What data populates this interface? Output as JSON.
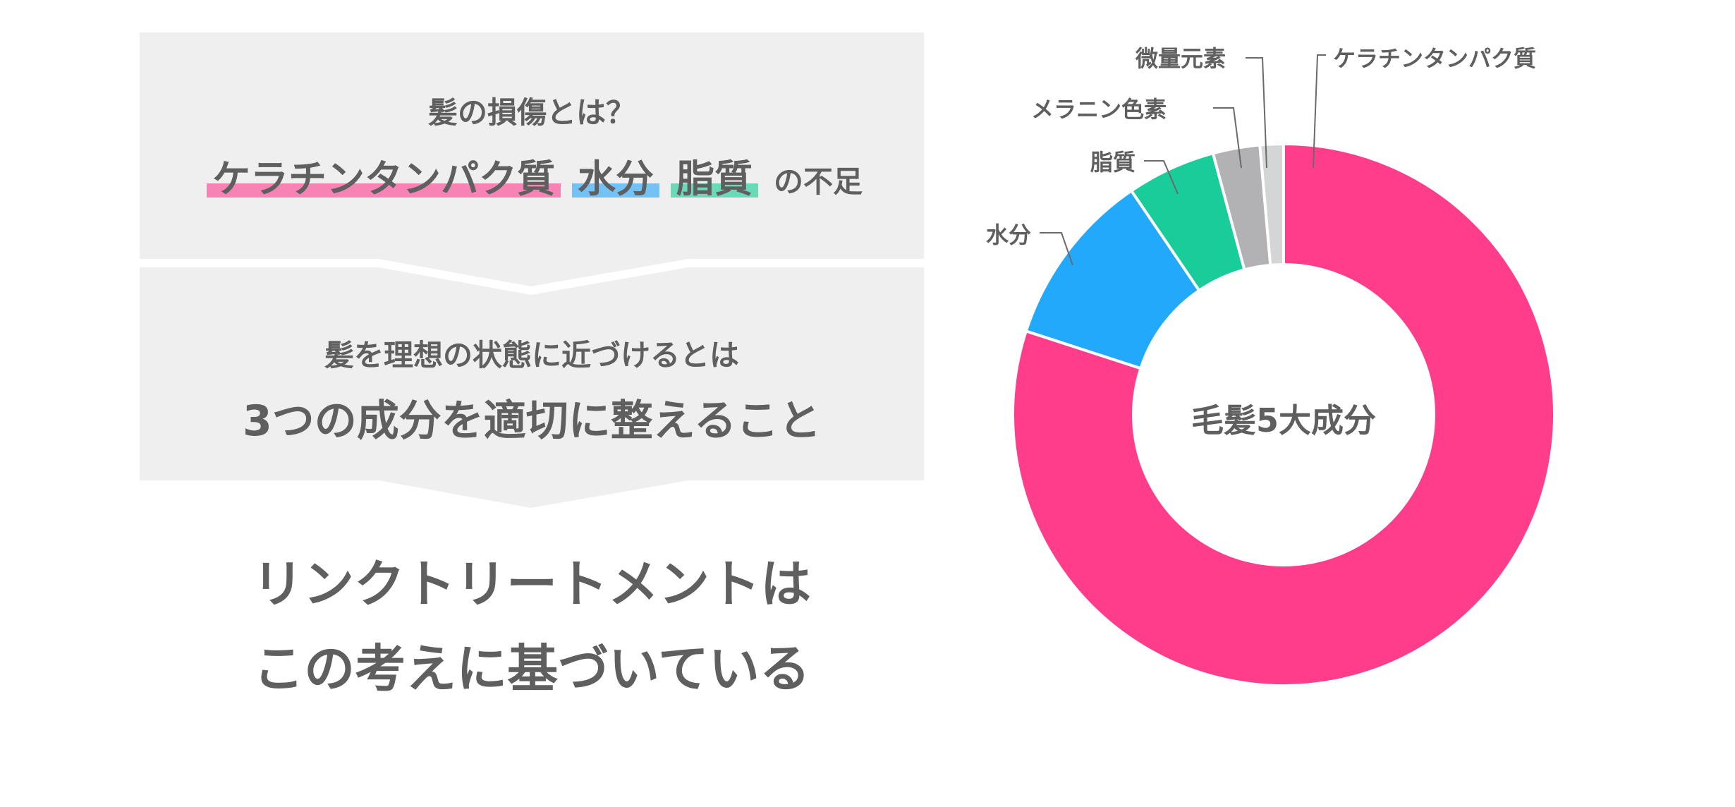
{
  "left": {
    "panel1": {
      "question": "髪の損傷とは？",
      "highlights": [
        {
          "text": "ケラチンタンパク質",
          "color": "#f783b4"
        },
        {
          "text": "水分",
          "color": "#72c2f6"
        },
        {
          "text": "脂質",
          "color": "#6ad9b8"
        }
      ],
      "tail": "の不足"
    },
    "panel2": {
      "subtitle": "髪を理想の状態に近づけるとは",
      "title": "3つの成分を適切に整えること"
    },
    "conclusion": {
      "line1": "リンクトリートメントは",
      "line2": "この考えに基づいている"
    },
    "panel_color": "#efefef"
  },
  "chart_data": {
    "type": "pie",
    "variant": "donut",
    "title": "毛髪5大成分",
    "categories": [
      "ケラチンタンパク質",
      "水分",
      "脂質",
      "メラニン色素",
      "微量元素"
    ],
    "values": [
      80.0,
      10.5,
      5.3,
      2.8,
      1.4
    ],
    "unit": "%",
    "colors": [
      "#ff3d8b",
      "#22a9fc",
      "#19cd9a",
      "#b2b2b4",
      "#d4d5d5"
    ],
    "start_angle": "12 o'clock, clockwise for keratin; small slices arranged counterclockwise from top",
    "legend": "leader-line labels outside slices",
    "note": "values estimated from slice angles; no numeric labels shown"
  }
}
